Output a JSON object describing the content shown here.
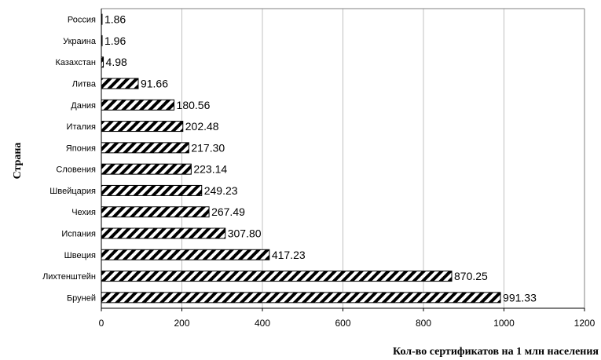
{
  "chart_data": {
    "type": "bar",
    "orientation": "horizontal",
    "title": "",
    "xlabel": "Кол-во сертификатов на 1 млн населения",
    "ylabel": "Страна",
    "xlim": [
      0,
      1200
    ],
    "xticks": [
      0,
      200,
      400,
      600,
      800,
      1000,
      1200
    ],
    "grid": "vertical",
    "bar_fill": "hatched-diagonal",
    "bar_color": "#000000",
    "categories": [
      "Россия",
      "Украина",
      "Казахстан",
      "Литва",
      "Дания",
      "Италия",
      "Япония",
      "Словения",
      "Швейцария",
      "Чехия",
      "Испания",
      "Швеция",
      "Лихтенштейн",
      "Бруней"
    ],
    "values": [
      1.86,
      1.96,
      4.98,
      91.66,
      180.56,
      202.48,
      217.3,
      223.14,
      249.23,
      267.49,
      307.8,
      417.23,
      870.25,
      991.33
    ],
    "value_labels": [
      "1.86",
      "1.96",
      "4.98",
      "91.66",
      "180.56",
      "202.48",
      "217.30",
      "223.14",
      "249.23",
      "267.49",
      "307.80",
      "417.23",
      "870.25",
      "991.33"
    ]
  }
}
